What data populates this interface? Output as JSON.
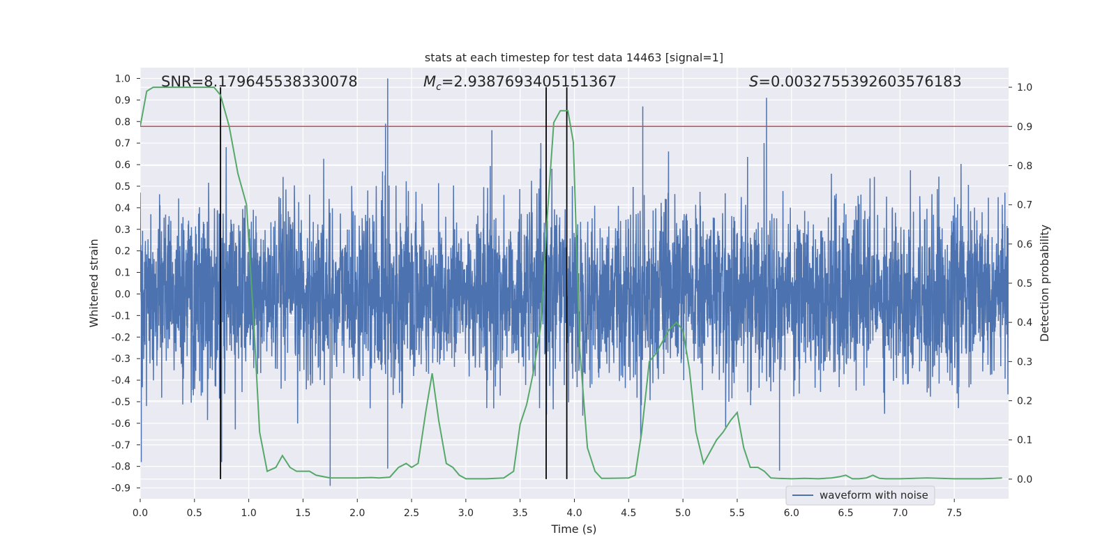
{
  "chart_data": {
    "type": "line",
    "title": "stats at each timestep for test data 14463 [signal=1]",
    "xlabel": "Time (s)",
    "ylabel_left": "Whitened strain",
    "ylabel_right": "Detection probability",
    "xlim": [
      0,
      8
    ],
    "ylim_left": [
      -0.95,
      1.05
    ],
    "ylim_right": [
      -0.05,
      1.05
    ],
    "x_ticks": [
      "0.0",
      "0.5",
      "1.0",
      "1.5",
      "2.0",
      "2.5",
      "3.0",
      "3.5",
      "4.0",
      "4.5",
      "5.0",
      "5.5",
      "6.0",
      "6.5",
      "7.0",
      "7.5"
    ],
    "x_tick_values": [
      0,
      0.5,
      1,
      1.5,
      2,
      2.5,
      3,
      3.5,
      4,
      4.5,
      5,
      5.5,
      6,
      6.5,
      7,
      7.5
    ],
    "y_ticks_left": [
      "1.0",
      "0.9",
      "0.8",
      "0.7",
      "0.6",
      "0.5",
      "0.4",
      "0.3",
      "0.2",
      "0.1",
      "0.0",
      "-0.1",
      "-0.2",
      "-0.3",
      "-0.4",
      "-0.5",
      "-0.6",
      "-0.7",
      "-0.8",
      "-0.9"
    ],
    "y_tick_values_left": [
      1.0,
      0.9,
      0.8,
      0.7,
      0.6,
      0.5,
      0.4,
      0.3,
      0.2,
      0.1,
      0.0,
      -0.1,
      -0.2,
      -0.3,
      -0.4,
      -0.5,
      -0.6,
      -0.7,
      -0.8,
      -0.9
    ],
    "y_ticks_right": [
      "1.0",
      "0.9",
      "0.8",
      "0.7",
      "0.6",
      "0.5",
      "0.4",
      "0.3",
      "0.2",
      "0.1",
      "0.0"
    ],
    "y_tick_values_right": [
      1.0,
      0.9,
      0.8,
      0.7,
      0.6,
      0.5,
      0.4,
      0.3,
      0.2,
      0.1,
      0.0
    ],
    "annotations": {
      "snr": "SNR=8.179645538330078",
      "mc_symbol": "M",
      "mc_sub": "c",
      "mc_value": "=2.9387693405151367",
      "s_symbol": "S",
      "s_value": "=0.003275539260357618​3"
    },
    "threshold": {
      "value": 0.9,
      "axis": "right",
      "color": "#c44e52"
    },
    "vertical_lines": [
      0.74,
      3.74,
      3.93
    ],
    "vertical_line_range_right": [
      0.0,
      1.0
    ],
    "waveform": {
      "name": "waveform with noise",
      "color": "#4c72b0",
      "sample_count": 1000,
      "peaks": [
        {
          "t": 2.28,
          "v": 1.0
        },
        {
          "t": 2.26,
          "v": 0.79
        },
        {
          "t": 5.77,
          "v": 0.91
        },
        {
          "t": 4.63,
          "v": 0.87
        },
        {
          "t": 3.24,
          "v": 0.76
        },
        {
          "t": 1.75,
          "v": -0.89
        },
        {
          "t": 5.89,
          "v": -0.82
        },
        {
          "t": 0.75,
          "v": -0.78
        },
        {
          "t": 0.01,
          "v": -0.78
        },
        {
          "t": 2.28,
          "v": -0.81
        }
      ]
    },
    "probability": {
      "name": "detection probability",
      "color": "#55a868",
      "t": [
        0.0,
        0.06,
        0.12,
        0.25,
        0.5,
        0.68,
        0.74,
        0.82,
        0.9,
        0.98,
        1.05,
        1.1,
        1.17,
        1.25,
        1.31,
        1.38,
        1.44,
        1.5,
        1.56,
        1.62,
        1.75,
        2.0,
        2.13,
        2.2,
        2.3,
        2.38,
        2.45,
        2.5,
        2.56,
        2.63,
        2.69,
        2.75,
        2.82,
        2.88,
        2.94,
        3.0,
        3.06,
        3.19,
        3.35,
        3.44,
        3.5,
        3.56,
        3.62,
        3.69,
        3.75,
        3.81,
        3.87,
        3.94,
        3.99,
        4.05,
        4.12,
        4.19,
        4.25,
        4.31,
        4.5,
        4.56,
        4.62,
        4.69,
        4.75,
        4.81,
        4.87,
        4.94,
        5.0,
        5.06,
        5.12,
        5.19,
        5.25,
        5.31,
        5.37,
        5.44,
        5.5,
        5.56,
        5.62,
        5.69,
        5.75,
        5.81,
        5.87,
        6.0,
        6.12,
        6.25,
        6.31,
        6.37,
        6.44,
        6.5,
        6.56,
        6.62,
        6.69,
        6.75,
        6.81,
        6.87,
        7.0,
        7.25,
        7.5,
        7.75,
        7.87,
        7.94
      ],
      "p": [
        0.9,
        0.99,
        1.0,
        1.0,
        1.0,
        1.0,
        0.98,
        0.9,
        0.78,
        0.7,
        0.38,
        0.12,
        0.02,
        0.03,
        0.06,
        0.03,
        0.02,
        0.02,
        0.02,
        0.01,
        0.003,
        0.003,
        0.004,
        0.003,
        0.005,
        0.03,
        0.04,
        0.03,
        0.04,
        0.17,
        0.27,
        0.15,
        0.04,
        0.03,
        0.01,
        0.001,
        0.001,
        0.001,
        0.003,
        0.02,
        0.14,
        0.19,
        0.27,
        0.39,
        0.67,
        0.91,
        0.94,
        0.94,
        0.86,
        0.33,
        0.08,
        0.02,
        0.002,
        0.002,
        0.003,
        0.01,
        0.12,
        0.3,
        0.32,
        0.35,
        0.38,
        0.4,
        0.38,
        0.28,
        0.12,
        0.04,
        0.07,
        0.1,
        0.12,
        0.15,
        0.17,
        0.08,
        0.03,
        0.03,
        0.02,
        0.003,
        0.002,
        0.001,
        0.002,
        0.001,
        0.002,
        0.003,
        0.006,
        0.01,
        0.001,
        0.001,
        0.003,
        0.01,
        0.002,
        0.001,
        0.001,
        0.003,
        0.001,
        0.001,
        0.002,
        0.003
      ]
    },
    "legend": {
      "label": "waveform with noise",
      "location": "bottom-right"
    },
    "grid": true,
    "background_color": "#eaeaf2"
  }
}
